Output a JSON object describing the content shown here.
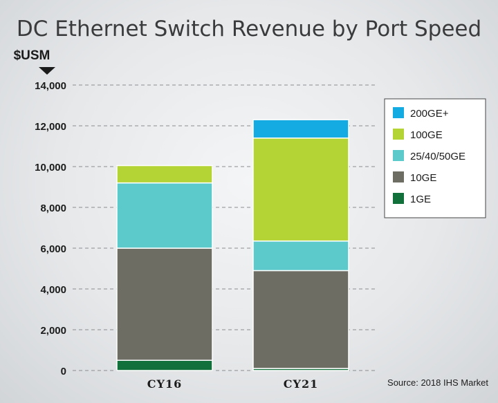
{
  "chart_data": {
    "type": "bar",
    "stacked": true,
    "title": "DC Ethernet Switch Revenue by Port Speed",
    "unit_label": "$USM",
    "categories": [
      "CY16",
      "CY21"
    ],
    "series": [
      {
        "name": "1GE",
        "color": "#12703a",
        "values": [
          500,
          100
        ]
      },
      {
        "name": "10GE",
        "color": "#6d6d64",
        "values": [
          5500,
          4800
        ]
      },
      {
        "name": "25/40/50GE",
        "color": "#5cc9cb",
        "values": [
          3200,
          1450
        ]
      },
      {
        "name": "100GE",
        "color": "#b4d334",
        "values": [
          850,
          5050
        ]
      },
      {
        "name": "200GE+",
        "color": "#14abe3",
        "values": [
          0,
          900
        ]
      }
    ],
    "legend_labels": [
      "200GE+",
      "100GE",
      "25/40/50GE",
      "10GE",
      "1GE"
    ],
    "legend_position": "right",
    "ylim": [
      0,
      14000
    ],
    "yticks": [
      "0",
      "2,000",
      "4,000",
      "6,000",
      "8,000",
      "10,000",
      "12,000",
      "14,000"
    ],
    "ytick_values": [
      0,
      2000,
      4000,
      6000,
      8000,
      10000,
      12000,
      14000
    ],
    "grid": true,
    "source": "Source: 2018 IHS Market"
  }
}
